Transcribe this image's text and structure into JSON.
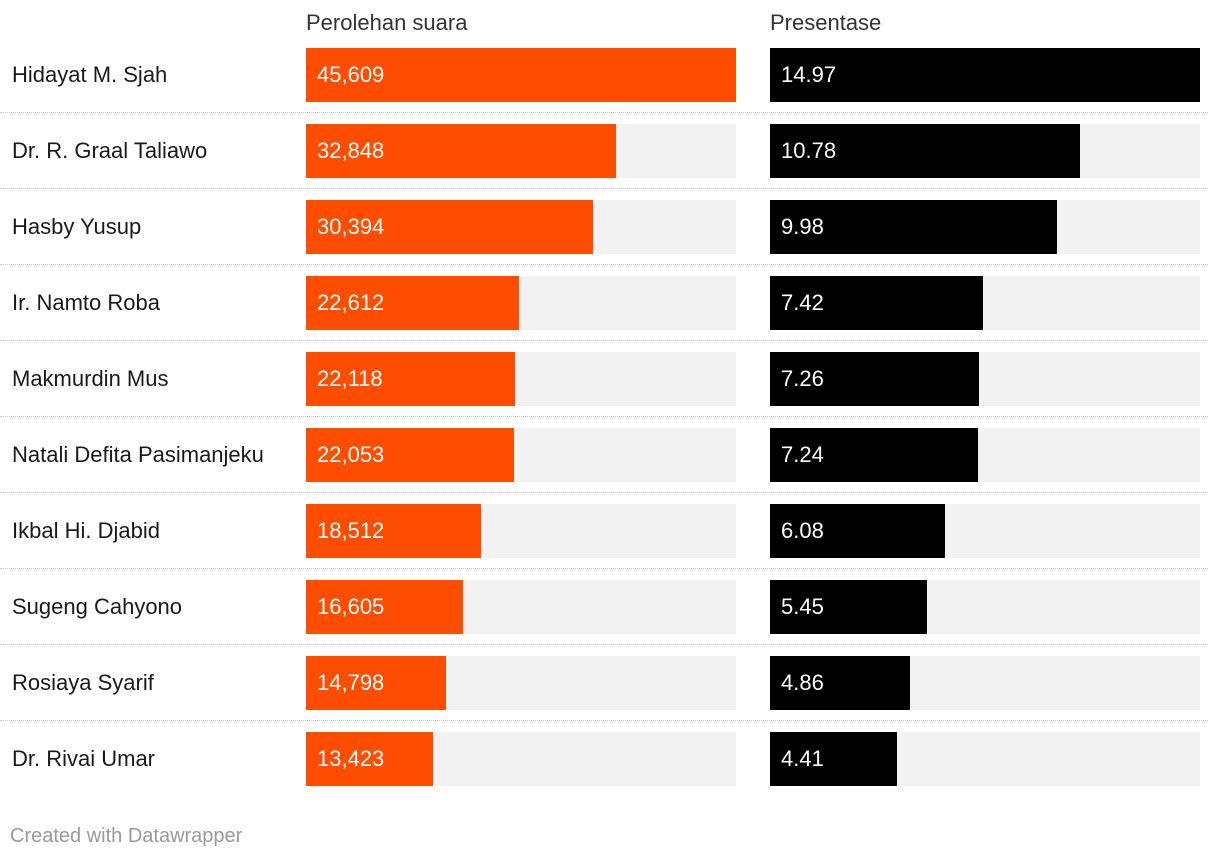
{
  "chart_data": {
    "type": "bar",
    "columns": [
      {
        "key": "votes",
        "header": "Perolehan suara",
        "color": "#ff4d00",
        "max": 45609
      },
      {
        "key": "percent",
        "header": "Presentase",
        "color": "#000000",
        "max": 14.97
      }
    ],
    "track_color": "#f2f2f2",
    "rows": [
      {
        "name": "Hidayat M. Sjah",
        "votes": 45609,
        "votes_label": "45,609",
        "percent": 14.97,
        "percent_label": "14.97"
      },
      {
        "name": "Dr. R. Graal Taliawo",
        "votes": 32848,
        "votes_label": "32,848",
        "percent": 10.78,
        "percent_label": "10.78"
      },
      {
        "name": "Hasby Yusup",
        "votes": 30394,
        "votes_label": "30,394",
        "percent": 9.98,
        "percent_label": "9.98"
      },
      {
        "name": "Ir. Namto Roba",
        "votes": 22612,
        "votes_label": "22,612",
        "percent": 7.42,
        "percent_label": "7.42"
      },
      {
        "name": "Makmurdin Mus",
        "votes": 22118,
        "votes_label": "22,118",
        "percent": 7.26,
        "percent_label": "7.26"
      },
      {
        "name": "Natali Defita Pasimanjeku",
        "votes": 22053,
        "votes_label": "22,053",
        "percent": 7.24,
        "percent_label": "7.24"
      },
      {
        "name": "Ikbal Hi. Djabid",
        "votes": 18512,
        "votes_label": "18,512",
        "percent": 6.08,
        "percent_label": "6.08"
      },
      {
        "name": "Sugeng Cahyono",
        "votes": 16605,
        "votes_label": "16,605",
        "percent": 5.45,
        "percent_label": "5.45"
      },
      {
        "name": "Rosiaya Syarif",
        "votes": 14798,
        "votes_label": "14,798",
        "percent": 4.86,
        "percent_label": "4.86"
      },
      {
        "name": "Dr. Rivai Umar",
        "votes": 13423,
        "votes_label": "13,423",
        "percent": 4.41,
        "percent_label": "4.41"
      }
    ]
  },
  "footer": "Created with Datawrapper"
}
